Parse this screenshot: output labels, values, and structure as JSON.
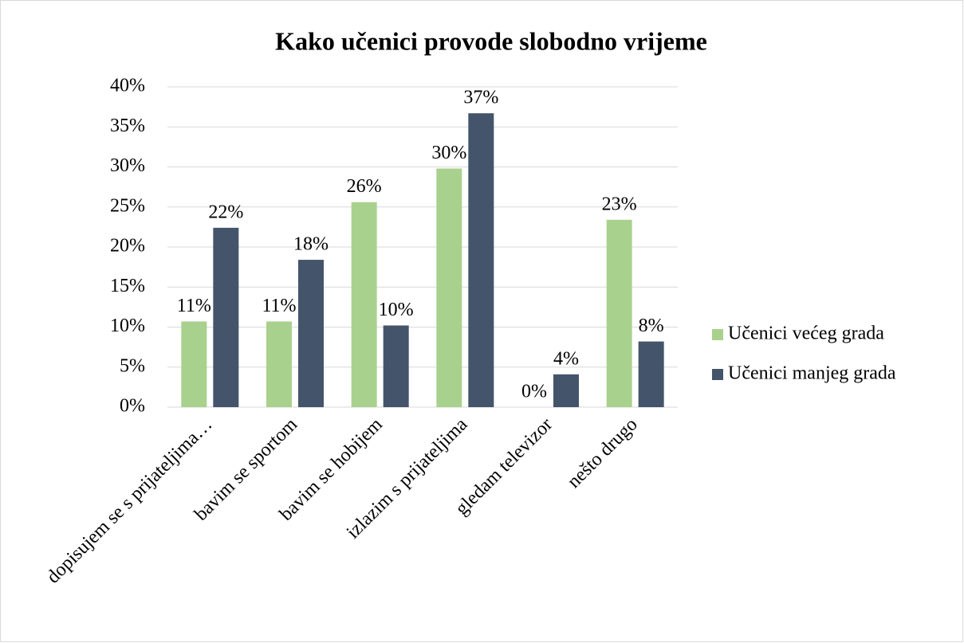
{
  "chart_data": {
    "type": "bar",
    "title": "Kako učenici provode slobodno vrijeme",
    "categories": [
      "dopisujem se s prijateljima…",
      "bavim se sportom",
      "bavim se hobijem",
      "izlazim s prijateljima",
      "gledam televizor",
      "nešto drugo"
    ],
    "series": [
      {
        "name": "Učenici većeg grada",
        "color": "#a9d18e",
        "values": [
          10.7,
          10.7,
          25.6,
          29.8,
          0,
          23.4
        ],
        "value_labels": [
          "11%",
          "11%",
          "26%",
          "30%",
          "0%",
          "23%"
        ]
      },
      {
        "name": "Učenici manjeg grada",
        "color": "#44546a",
        "values": [
          22.4,
          18.4,
          10.2,
          36.7,
          4.1,
          8.2
        ],
        "value_labels": [
          "22%",
          "18%",
          "10%",
          "37%",
          "4%",
          "8%"
        ]
      }
    ],
    "ylim": [
      0,
      40
    ],
    "yticks": [
      {
        "value": 0,
        "label": "0%"
      },
      {
        "value": 5,
        "label": "5%"
      },
      {
        "value": 10,
        "label": "10%"
      },
      {
        "value": 15,
        "label": "15%"
      },
      {
        "value": 20,
        "label": "20%"
      },
      {
        "value": 25,
        "label": "25%"
      },
      {
        "value": 30,
        "label": "30%"
      },
      {
        "value": 35,
        "label": "35%"
      },
      {
        "value": 40,
        "label": "40%"
      }
    ],
    "grid": true,
    "legend": "right"
  }
}
